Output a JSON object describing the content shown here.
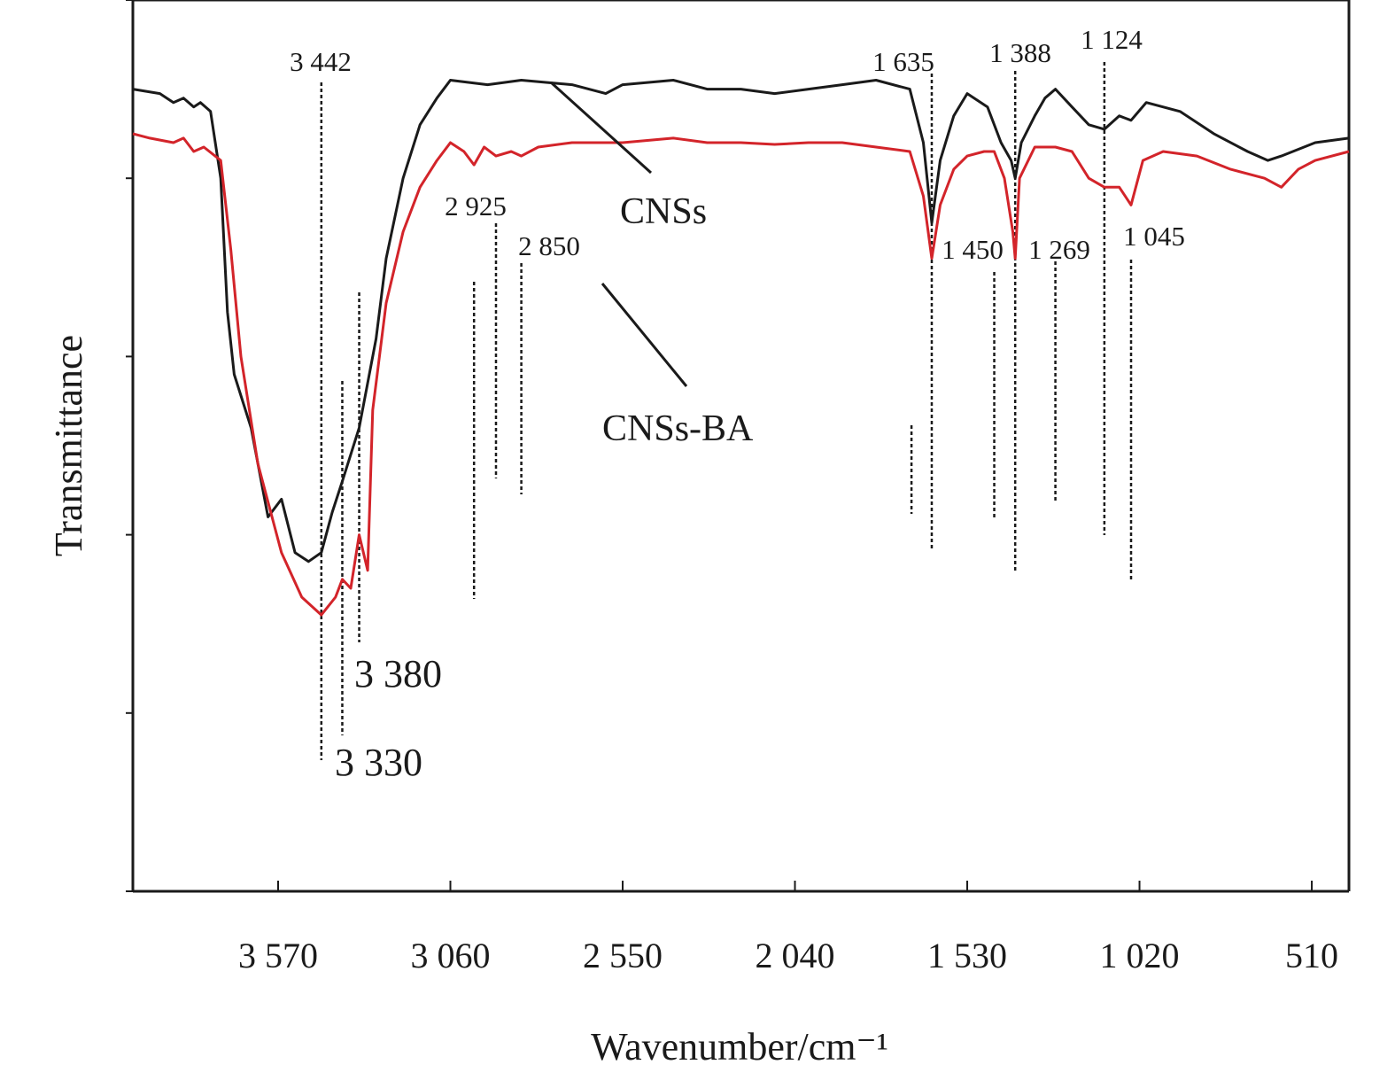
{
  "chart_data": {
    "type": "line",
    "title": "",
    "xlabel": "Wavenumber/cm⁻¹",
    "ylabel": "Transmittance",
    "x_reversed": true,
    "xlim": [
      4000,
      400
    ],
    "x_ticks": [
      3570,
      3060,
      2550,
      2040,
      1530,
      1020,
      510
    ],
    "x_tick_labels": [
      "3 570",
      "3 060",
      "2 550",
      "2 040",
      "1 530",
      "1 020",
      "510"
    ],
    "ylim": [
      0,
      1
    ],
    "y_ticks_unlabeled": [
      0,
      0.2,
      0.4,
      0.6,
      0.8,
      1.0
    ],
    "legend": "none",
    "series": [
      {
        "name": "CNSs",
        "color": "#1a1a1a",
        "points": [
          [
            4000,
            0.9
          ],
          [
            3920,
            0.895
          ],
          [
            3880,
            0.885
          ],
          [
            3850,
            0.89
          ],
          [
            3820,
            0.88
          ],
          [
            3800,
            0.885
          ],
          [
            3770,
            0.875
          ],
          [
            3740,
            0.8
          ],
          [
            3720,
            0.65
          ],
          [
            3700,
            0.58
          ],
          [
            3650,
            0.52
          ],
          [
            3600,
            0.42
          ],
          [
            3560,
            0.44
          ],
          [
            3520,
            0.38
          ],
          [
            3480,
            0.37
          ],
          [
            3442,
            0.38
          ],
          [
            3410,
            0.425
          ],
          [
            3380,
            0.46
          ],
          [
            3330,
            0.52
          ],
          [
            3280,
            0.62
          ],
          [
            3250,
            0.71
          ],
          [
            3200,
            0.8
          ],
          [
            3150,
            0.86
          ],
          [
            3100,
            0.89
          ],
          [
            3060,
            0.91
          ],
          [
            2950,
            0.905
          ],
          [
            2850,
            0.91
          ],
          [
            2700,
            0.905
          ],
          [
            2600,
            0.895
          ],
          [
            2550,
            0.905
          ],
          [
            2400,
            0.91
          ],
          [
            2300,
            0.9
          ],
          [
            2200,
            0.9
          ],
          [
            2100,
            0.895
          ],
          [
            2000,
            0.9
          ],
          [
            1900,
            0.905
          ],
          [
            1800,
            0.91
          ],
          [
            1700,
            0.9
          ],
          [
            1660,
            0.84
          ],
          [
            1635,
            0.75
          ],
          [
            1610,
            0.82
          ],
          [
            1570,
            0.87
          ],
          [
            1530,
            0.895
          ],
          [
            1470,
            0.88
          ],
          [
            1430,
            0.84
          ],
          [
            1400,
            0.82
          ],
          [
            1388,
            0.8
          ],
          [
            1370,
            0.84
          ],
          [
            1330,
            0.87
          ],
          [
            1300,
            0.89
          ],
          [
            1269,
            0.9
          ],
          [
            1220,
            0.88
          ],
          [
            1170,
            0.86
          ],
          [
            1124,
            0.855
          ],
          [
            1080,
            0.87
          ],
          [
            1045,
            0.865
          ],
          [
            1000,
            0.885
          ],
          [
            900,
            0.875
          ],
          [
            800,
            0.85
          ],
          [
            700,
            0.83
          ],
          [
            640,
            0.82
          ],
          [
            600,
            0.825
          ],
          [
            500,
            0.84
          ],
          [
            400,
            0.845
          ]
        ]
      },
      {
        "name": "CNSs-BA",
        "color": "#d3242a",
        "points": [
          [
            4000,
            0.85
          ],
          [
            3950,
            0.845
          ],
          [
            3880,
            0.84
          ],
          [
            3850,
            0.845
          ],
          [
            3820,
            0.83
          ],
          [
            3790,
            0.835
          ],
          [
            3740,
            0.82
          ],
          [
            3710,
            0.72
          ],
          [
            3680,
            0.6
          ],
          [
            3630,
            0.48
          ],
          [
            3560,
            0.38
          ],
          [
            3500,
            0.33
          ],
          [
            3442,
            0.31
          ],
          [
            3400,
            0.33
          ],
          [
            3380,
            0.35
          ],
          [
            3355,
            0.34
          ],
          [
            3330,
            0.4
          ],
          [
            3305,
            0.36
          ],
          [
            3290,
            0.54
          ],
          [
            3250,
            0.66
          ],
          [
            3200,
            0.74
          ],
          [
            3150,
            0.79
          ],
          [
            3100,
            0.82
          ],
          [
            3060,
            0.84
          ],
          [
            3020,
            0.83
          ],
          [
            2990,
            0.815
          ],
          [
            2960,
            0.835
          ],
          [
            2925,
            0.825
          ],
          [
            2880,
            0.83
          ],
          [
            2850,
            0.825
          ],
          [
            2800,
            0.835
          ],
          [
            2700,
            0.84
          ],
          [
            2550,
            0.84
          ],
          [
            2400,
            0.845
          ],
          [
            2300,
            0.84
          ],
          [
            2200,
            0.84
          ],
          [
            2100,
            0.838
          ],
          [
            2000,
            0.84
          ],
          [
            1900,
            0.84
          ],
          [
            1800,
            0.835
          ],
          [
            1700,
            0.83
          ],
          [
            1660,
            0.78
          ],
          [
            1635,
            0.71
          ],
          [
            1610,
            0.77
          ],
          [
            1570,
            0.81
          ],
          [
            1530,
            0.825
          ],
          [
            1480,
            0.83
          ],
          [
            1450,
            0.83
          ],
          [
            1420,
            0.8
          ],
          [
            1395,
            0.74
          ],
          [
            1388,
            0.71
          ],
          [
            1375,
            0.8
          ],
          [
            1330,
            0.835
          ],
          [
            1269,
            0.835
          ],
          [
            1220,
            0.83
          ],
          [
            1170,
            0.8
          ],
          [
            1124,
            0.79
          ],
          [
            1080,
            0.79
          ],
          [
            1045,
            0.77
          ],
          [
            1010,
            0.82
          ],
          [
            950,
            0.83
          ],
          [
            850,
            0.825
          ],
          [
            750,
            0.81
          ],
          [
            650,
            0.8
          ],
          [
            600,
            0.79
          ],
          [
            550,
            0.81
          ],
          [
            500,
            0.82
          ],
          [
            400,
            0.83
          ]
        ]
      }
    ],
    "peak_markers": [
      {
        "label": "3 442",
        "x": 3442
      },
      {
        "label": "3 380",
        "x": 3380
      },
      {
        "label": "3 330",
        "x": 3330
      },
      {
        "label": "2 925",
        "x": 2925
      },
      {
        "label": "2 850",
        "x": 2850
      },
      {
        "label": "1 635",
        "x": 1635
      },
      {
        "label": "1 450",
        "x": 1450
      },
      {
        "label": "1 388",
        "x": 1388
      },
      {
        "label": "1 269",
        "x": 1269
      },
      {
        "label": "1 124",
        "x": 1124
      },
      {
        "label": "1 045",
        "x": 1045
      }
    ],
    "series_labels": [
      "CNSs",
      "CNSs-BA"
    ]
  }
}
